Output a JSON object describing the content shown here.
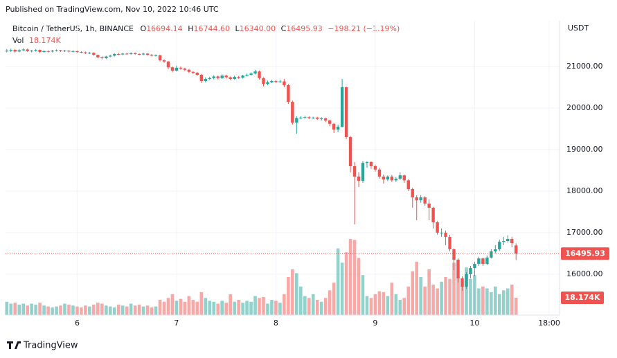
{
  "header": "Published on TradingView.com, Nov 10, 2022 10:46 UTC",
  "footer": "TradingView",
  "chart_data": {
    "type": "candlestick",
    "title": "Bitcoin / TetherUS, 1h, BINANCE",
    "legend": {
      "o_label": "O",
      "open": "16694.14",
      "h_label": "H",
      "high": "16744.60",
      "l_label": "L",
      "low": "16340.00",
      "c_label": "C",
      "close": "16495.93",
      "change": "−198.21 (−1.19%)",
      "vol_label": "Vol",
      "volume": "18.174K"
    },
    "y_axis_label": "USDT",
    "up_color": "#26a69a",
    "down_color": "#ef5350",
    "grid": true,
    "xlim": [
      -0.3,
      133.5
    ],
    "xticks": [
      {
        "value": 17,
        "label": "6"
      },
      {
        "value": 41,
        "label": "7"
      },
      {
        "value": 65,
        "label": "8"
      },
      {
        "value": 89,
        "label": "9"
      },
      {
        "value": 113,
        "label": "10"
      },
      {
        "value": 131,
        "label": "18:00"
      }
    ],
    "ylim": [
      15017,
      22100
    ],
    "yticks": [
      {
        "value": 16000,
        "label": "16000.00"
      },
      {
        "value": 17000,
        "label": "17000.00"
      },
      {
        "value": 18000,
        "label": "18000.00"
      },
      {
        "value": 19000,
        "label": "19000.00"
      },
      {
        "value": 20000,
        "label": "20000.00"
      },
      {
        "value": 21000,
        "label": "21000.00"
      }
    ],
    "open": [
      21370,
      21380,
      21400,
      21360,
      21390,
      21410,
      21370,
      21380,
      21400,
      21350,
      21370,
      21360,
      21380,
      21390,
      21370,
      21380,
      21360,
      21370,
      21350,
      21340,
      21320,
      21330,
      21280,
      21220,
      21200,
      21240,
      21260,
      21300,
      21290,
      21310,
      21300,
      21320,
      21300,
      21290,
      21310,
      21280,
      21260,
      21270,
      21150,
      21120,
      20980,
      20900,
      20970,
      20950,
      20920,
      20870,
      20850,
      20800,
      20650,
      20700,
      20720,
      20760,
      20720,
      20780,
      20740,
      20700,
      20750,
      20730,
      20780,
      20800,
      20830,
      20880,
      20720,
      20580,
      20620,
      20650,
      20630,
      20640,
      20550,
      20150,
      19650,
      19760,
      19770,
      19780,
      19760,
      19770,
      19740,
      19750,
      19700,
      19620,
      19480,
      19550,
      20500,
      19300,
      18600,
      18350,
      18250,
      18680,
      18700,
      18600,
      18520,
      18350,
      18280,
      18350,
      18260,
      18300,
      18380,
      18260,
      18050,
      17850,
      17780,
      17850,
      17700,
      17600,
      17250,
      17000,
      17000,
      16900,
      16600,
      16350,
      15900,
      15700,
      16000,
      16150,
      16250,
      16380,
      16250,
      16400,
      16550,
      16600,
      16780,
      16800,
      16850,
      16694.14
    ],
    "high": [
      21420,
      21430,
      21420,
      21420,
      21440,
      21430,
      21400,
      21420,
      21410,
      21390,
      21390,
      21400,
      21410,
      21400,
      21400,
      21390,
      21390,
      21380,
      21370,
      21360,
      21350,
      21340,
      21290,
      21240,
      21260,
      21280,
      21320,
      21330,
      21330,
      21330,
      21340,
      21340,
      21320,
      21330,
      21320,
      21300,
      21290,
      21280,
      21170,
      21130,
      21000,
      21020,
      21000,
      20970,
      20940,
      20890,
      20870,
      20820,
      20740,
      20750,
      20790,
      20780,
      20810,
      20800,
      20760,
      20780,
      20770,
      20800,
      20830,
      20860,
      20920,
      20900,
      20740,
      20660,
      20680,
      20670,
      20680,
      20700,
      20580,
      20180,
      19800,
      19800,
      19810,
      19800,
      19790,
      19790,
      19780,
      19770,
      19720,
      19640,
      19600,
      20700,
      20520,
      19330,
      18700,
      18450,
      18720,
      18720,
      18720,
      18640,
      18560,
      18400,
      18380,
      18390,
      18340,
      18450,
      18400,
      18290,
      18080,
      17900,
      17900,
      17880,
      17800,
      17620,
      17280,
      17100,
      17050,
      16950,
      16620,
      16380,
      15950,
      16050,
      16200,
      16300,
      16420,
      16400,
      16450,
      16600,
      16700,
      16830,
      16900,
      16940,
      16900,
      16744.6
    ],
    "low": [
      21340,
      21350,
      21330,
      21340,
      21370,
      21350,
      21340,
      21360,
      21320,
      21330,
      21340,
      21340,
      21360,
      21350,
      21350,
      21340,
      21340,
      21330,
      21320,
      21300,
      21300,
      21260,
      21200,
      21170,
      21180,
      21220,
      21240,
      21270,
      21270,
      21280,
      21280,
      21280,
      21270,
      21270,
      21260,
      21240,
      21240,
      21120,
      21090,
      20930,
      20860,
      20880,
      20920,
      20890,
      20840,
      20820,
      20770,
      20600,
      20620,
      20670,
      20690,
      20690,
      20700,
      20710,
      20670,
      20680,
      20700,
      20710,
      20760,
      20780,
      20810,
      20690,
      20520,
      20550,
      20600,
      20600,
      20610,
      20500,
      20100,
      19600,
      19380,
      19730,
      19750,
      19730,
      19740,
      19710,
      19700,
      19660,
      19560,
      19400,
      19420,
      19530,
      19250,
      18450,
      17200,
      18100,
      18200,
      18560,
      18540,
      18470,
      18300,
      18180,
      18240,
      18220,
      18220,
      18270,
      18200,
      18000,
      17600,
      17300,
      17720,
      17650,
      17300,
      17100,
      16950,
      16900,
      16700,
      16550,
      16100,
      15800,
      15600,
      15650,
      15900,
      15950,
      16200,
      16200,
      16220,
      16380,
      16500,
      16560,
      16700,
      16760,
      16650,
      16340
    ],
    "close": [
      21380,
      21400,
      21360,
      21390,
      21410,
      21370,
      21380,
      21400,
      21350,
      21370,
      21360,
      21380,
      21390,
      21370,
      21380,
      21360,
      21370,
      21350,
      21340,
      21320,
      21330,
      21280,
      21220,
      21200,
      21240,
      21260,
      21300,
      21290,
      21310,
      21300,
      21320,
      21300,
      21290,
      21310,
      21280,
      21260,
      21270,
      21150,
      21120,
      20980,
      20900,
      20970,
      20950,
      20920,
      20870,
      20850,
      20800,
      20650,
      20700,
      20720,
      20760,
      20720,
      20780,
      20740,
      20700,
      20750,
      20730,
      20780,
      20800,
      20830,
      20880,
      20720,
      20580,
      20620,
      20650,
      20630,
      20640,
      20550,
      20150,
      19650,
      19760,
      19770,
      19780,
      19760,
      19770,
      19740,
      19750,
      19700,
      19620,
      19480,
      19550,
      20500,
      19300,
      18600,
      18350,
      18250,
      18680,
      18700,
      18600,
      18520,
      18350,
      18280,
      18350,
      18260,
      18300,
      18380,
      18260,
      18050,
      17850,
      17780,
      17850,
      17700,
      17600,
      17250,
      17000,
      17000,
      16900,
      16600,
      16350,
      15900,
      15700,
      16000,
      16150,
      16250,
      16380,
      16250,
      16400,
      16550,
      16600,
      16780,
      16800,
      16850,
      16750,
      16495.93
    ],
    "volume": [
      14,
      12,
      13,
      11,
      12,
      10,
      12,
      11,
      13,
      10,
      9,
      8,
      9,
      10,
      12,
      11,
      10,
      9,
      8,
      10,
      9,
      11,
      13,
      12,
      10,
      9,
      8,
      11,
      10,
      9,
      12,
      10,
      11,
      9,
      10,
      8,
      9,
      16,
      14,
      18,
      22,
      15,
      17,
      14,
      20,
      16,
      14,
      24,
      18,
      15,
      14,
      12,
      15,
      13,
      22,
      14,
      16,
      13,
      15,
      14,
      20,
      18,
      19,
      12,
      16,
      15,
      13,
      22,
      40,
      48,
      44,
      30,
      20,
      18,
      22,
      16,
      14,
      18,
      26,
      34,
      70,
      55,
      66,
      80,
      79,
      60,
      42,
      20,
      18,
      22,
      25,
      24,
      20,
      34,
      22,
      16,
      18,
      30,
      46,
      56,
      40,
      30,
      48,
      32,
      28,
      35,
      40,
      38,
      55,
      40,
      36,
      50,
      38,
      42,
      28,
      30,
      28,
      24,
      30,
      22,
      26,
      28,
      32,
      18.174
    ]
  }
}
